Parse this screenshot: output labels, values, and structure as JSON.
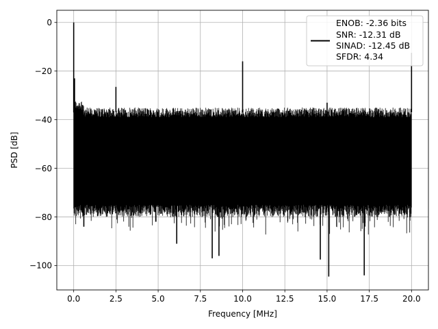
{
  "chart_data": {
    "type": "line",
    "title": "",
    "xlabel": "Frequency [MHz]",
    "ylabel": "PSD [dB]",
    "xlim": [
      -1.0,
      21.0
    ],
    "ylim": [
      -110,
      5
    ],
    "xticks": [
      0.0,
      2.5,
      5.0,
      7.5,
      10.0,
      12.5,
      15.0,
      17.5,
      20.0
    ],
    "xtick_labels": [
      "0.0",
      "2.5",
      "5.0",
      "7.5",
      "10.0",
      "12.5",
      "15.0",
      "17.5",
      "20.0"
    ],
    "yticks": [
      0,
      -20,
      -40,
      -60,
      -80,
      -100
    ],
    "ytick_labels": [
      "0",
      "−20",
      "−40",
      "−60",
      "−80",
      "−100"
    ],
    "grid": true,
    "legend_position": "top-right",
    "legend": [
      "ENOB: -2.36 bits",
      "SNR: -12.31 dB",
      "SINAD: -12.45 dB",
      "SFDR: 4.34"
    ],
    "series_color": "#000000",
    "freq_range": [
      0.0,
      20.0
    ],
    "noise_floor_upper": -37,
    "noise_floor_lower": -75,
    "peaks": [
      {
        "x": 0.0,
        "y": 0.0
      },
      {
        "x": 0.05,
        "y": -23
      },
      {
        "x": 2.5,
        "y": -26.5
      },
      {
        "x": 10.0,
        "y": -16
      },
      {
        "x": 15.0,
        "y": -33
      },
      {
        "x": 20.0,
        "y": -12.5
      }
    ],
    "dips": [
      {
        "x": 0.6,
        "y": -84
      },
      {
        "x": 6.1,
        "y": -91
      },
      {
        "x": 8.2,
        "y": -97
      },
      {
        "x": 8.6,
        "y": -96
      },
      {
        "x": 14.6,
        "y": -97.5
      },
      {
        "x": 15.1,
        "y": -104.5
      },
      {
        "x": 17.2,
        "y": -104
      },
      {
        "x": 19.9,
        "y": -80
      }
    ]
  }
}
